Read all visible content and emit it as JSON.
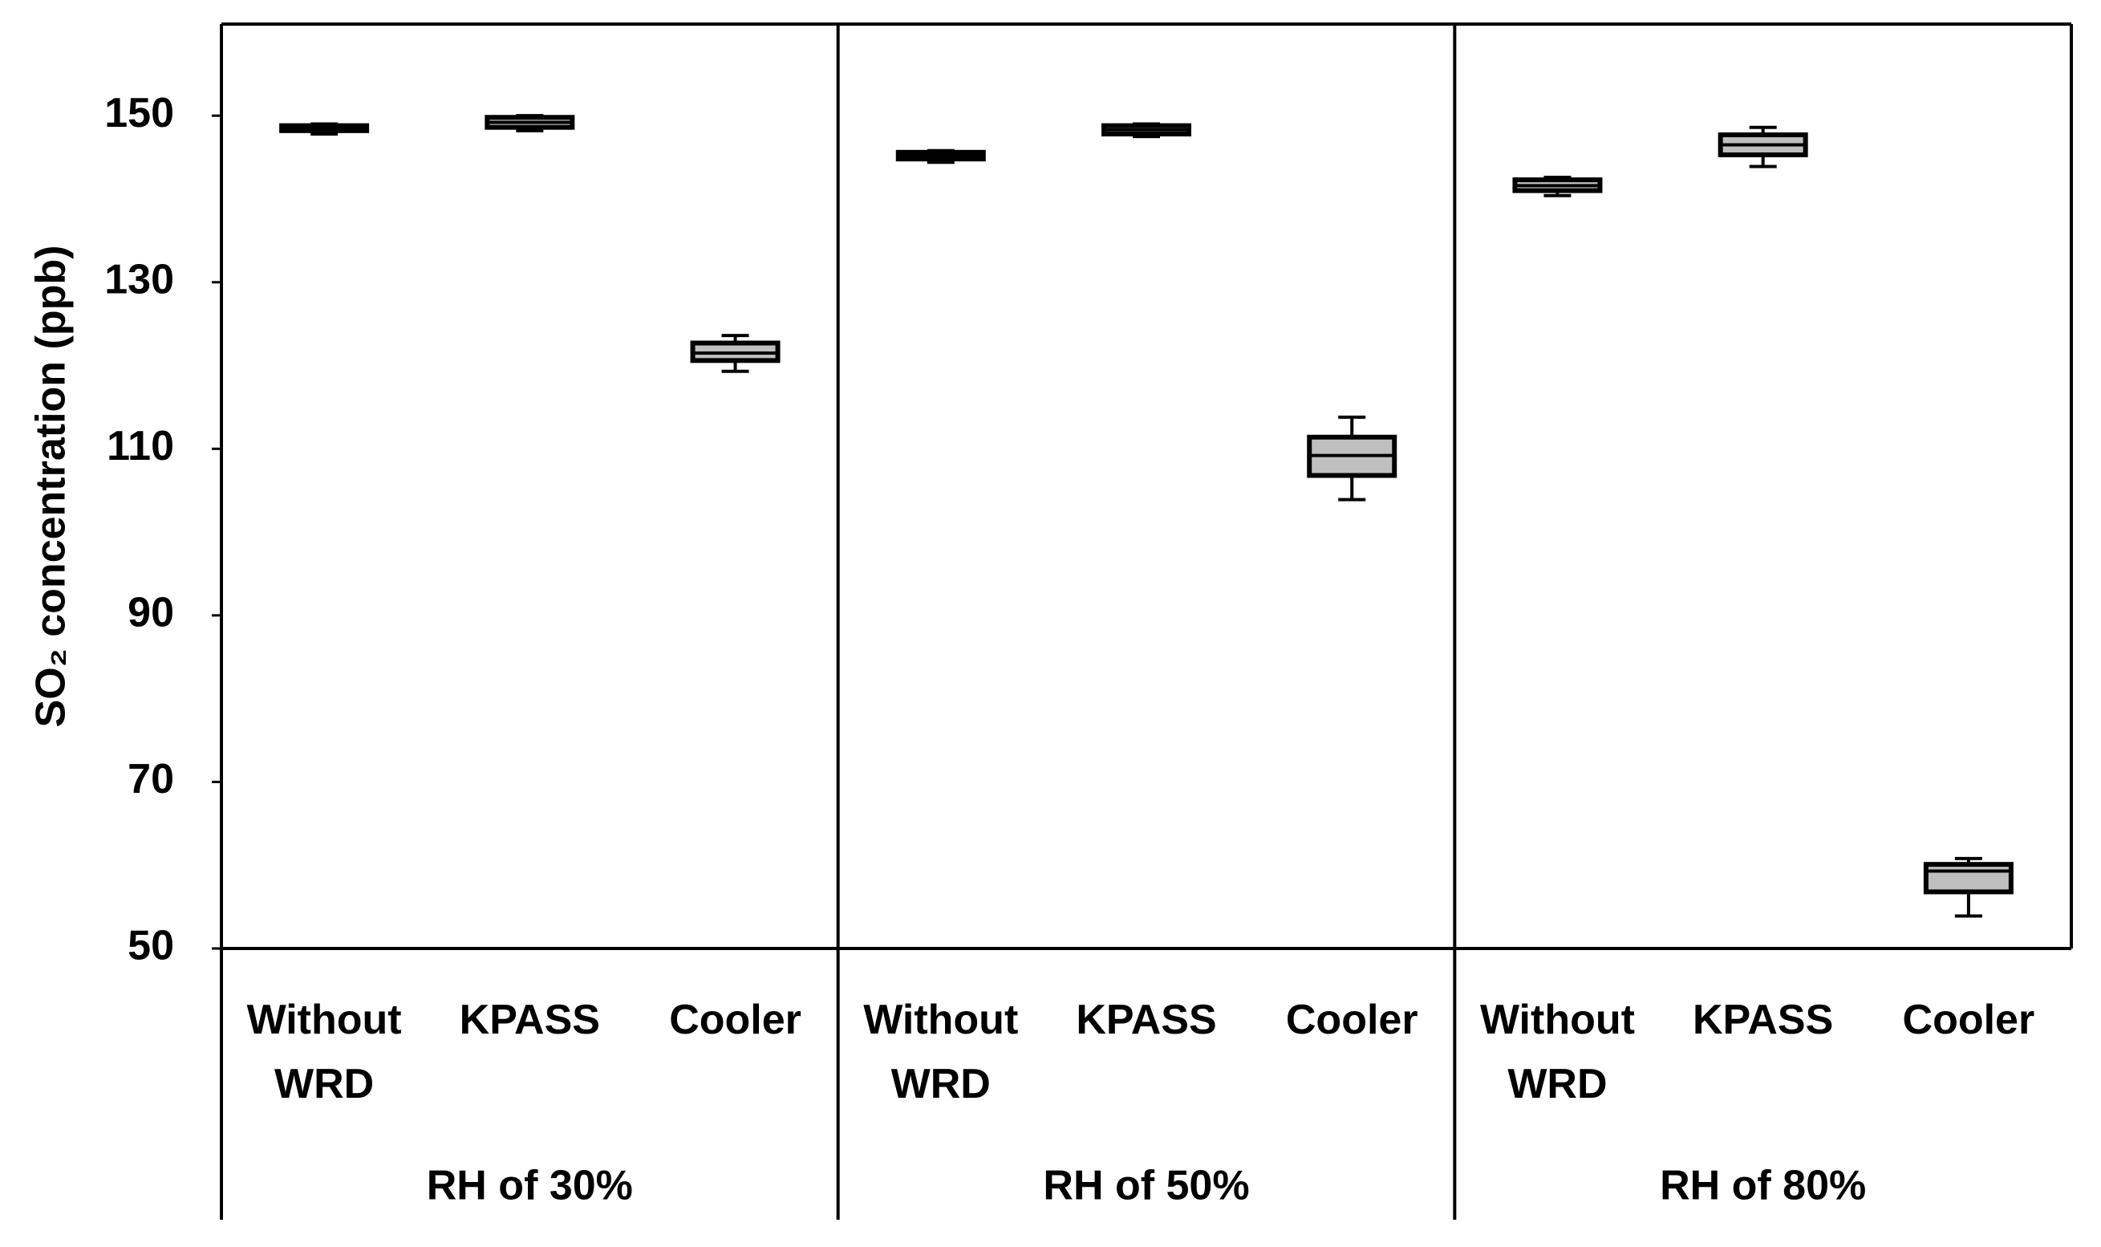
{
  "chart_data": {
    "type": "box",
    "y_label": "SO₂ concentration (ppb)",
    "ylim": [
      50,
      161
    ],
    "yticks": [
      50,
      70,
      90,
      110,
      130,
      150
    ],
    "groups": [
      "RH of 30%",
      "RH of 50%",
      "RH of 80%"
    ],
    "categories": [
      "Without WRD",
      "KPASS",
      "Cooler",
      "Without WRD",
      "KPASS",
      "Cooler",
      "Without WRD",
      "KPASS",
      "Cooler"
    ],
    "color": "#bfbfbf",
    "boxes": [
      {
        "min": 147.8,
        "q1": 148.2,
        "median": 148.5,
        "q3": 148.8,
        "max": 149.0
      },
      {
        "min": 148.2,
        "q1": 148.6,
        "median": 149.2,
        "q3": 149.8,
        "max": 150.0
      },
      {
        "min": 119.3,
        "q1": 120.6,
        "median": 121.5,
        "q3": 122.7,
        "max": 123.6
      },
      {
        "min": 144.4,
        "q1": 144.8,
        "median": 145.2,
        "q3": 145.6,
        "max": 145.8
      },
      {
        "min": 147.5,
        "q1": 147.8,
        "median": 148.3,
        "q3": 148.8,
        "max": 149.0
      },
      {
        "min": 103.9,
        "q1": 106.8,
        "median": 109.2,
        "q3": 111.4,
        "max": 113.8
      },
      {
        "min": 140.4,
        "q1": 141.0,
        "median": 141.6,
        "q3": 142.3,
        "max": 142.6
      },
      {
        "min": 143.9,
        "q1": 145.3,
        "median": 146.5,
        "q3": 147.7,
        "max": 148.6
      },
      {
        "min": 53.9,
        "q1": 56.8,
        "median": 59.3,
        "q3": 60.1,
        "max": 60.8
      }
    ]
  }
}
